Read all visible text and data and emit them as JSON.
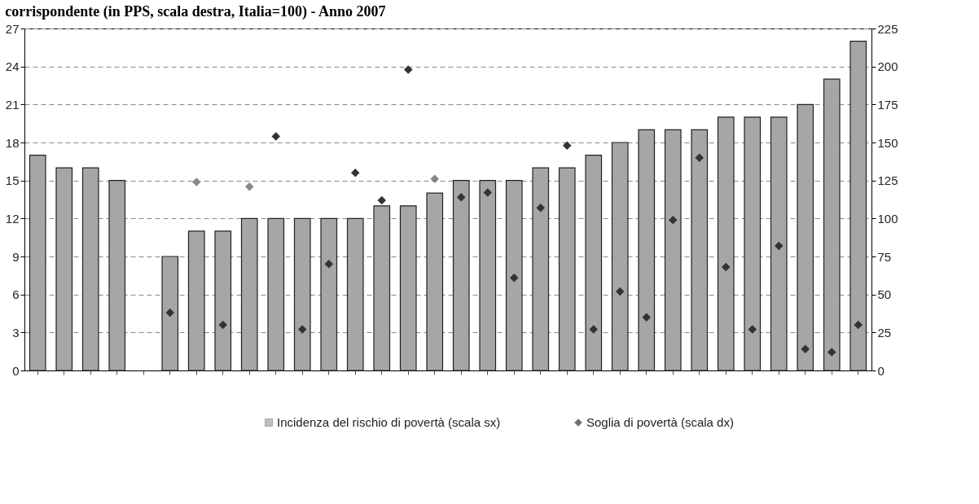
{
  "chart_data": {
    "type": "bar",
    "title": "corrispondente (in PPS, scala destra, Italia=100) - Anno 2007",
    "categories": [
      null,
      null,
      null,
      null,
      null,
      null,
      null,
      null,
      null,
      null,
      null,
      null,
      null,
      null,
      null,
      null,
      null,
      null,
      null,
      null,
      null,
      null,
      null,
      null,
      null,
      null,
      null,
      null,
      null,
      null,
      null,
      null
    ],
    "series": [
      {
        "name": "Incidenza del rischio di povertà (scala sx)",
        "color": "#a6a6a6",
        "values": [
          17,
          16,
          16,
          15,
          null,
          9,
          11,
          11,
          12,
          12,
          12,
          12,
          12,
          13,
          13,
          14,
          15,
          15,
          15,
          16,
          16,
          17,
          18,
          19,
          19,
          19,
          20,
          20,
          20,
          21,
          23,
          26
        ]
      },
      {
        "name": "Soglia di povertà (scala dx)",
        "type": "scatter",
        "axis": "y2",
        "marker": "diamond",
        "color": "#333333",
        "colors": [
          "#333333",
          "#333333",
          "#333333",
          "#333333",
          "#333333",
          "#333333",
          "#888888",
          "#333333",
          "#888888",
          "#333333",
          "#333333",
          "#333333",
          "#333333",
          "#333333",
          "#333333",
          "#888888",
          "#333333",
          "#333333",
          "#333333",
          "#333333",
          "#333333",
          "#333333",
          "#333333",
          "#333333",
          "#333333",
          "#333333",
          "#333333",
          "#333333",
          "#333333",
          "#333333",
          "#333333",
          "#333333"
        ],
        "values": [
          null,
          null,
          null,
          null,
          null,
          38,
          124,
          30,
          121,
          154,
          27,
          70,
          130,
          112,
          198,
          126,
          114,
          117,
          61,
          107,
          148,
          27,
          52,
          35,
          99,
          140,
          68,
          27,
          82,
          14,
          12,
          30
        ]
      }
    ],
    "ylim": [
      0,
      27
    ],
    "yticks": [
      0,
      3,
      6,
      9,
      12,
      15,
      18,
      21,
      24,
      27
    ],
    "y2lim": [
      0,
      225
    ],
    "y2ticks": [
      0,
      25,
      50,
      75,
      100,
      125,
      150,
      175,
      200,
      225
    ],
    "grid": "y",
    "legend": "bottom",
    "tick_labels": "y"
  }
}
